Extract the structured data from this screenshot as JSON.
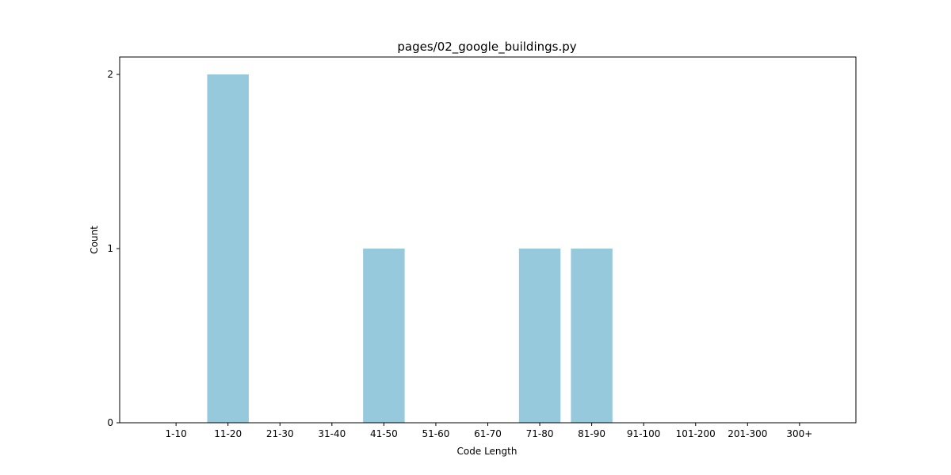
{
  "chart_data": {
    "type": "bar",
    "title": "pages/02_google_buildings.py",
    "xlabel": "Code Length",
    "ylabel": "Count",
    "categories": [
      "1-10",
      "11-20",
      "21-30",
      "31-40",
      "41-50",
      "51-60",
      "61-70",
      "71-80",
      "81-90",
      "91-100",
      "101-200",
      "201-300",
      "300+"
    ],
    "values": [
      0,
      2,
      0,
      0,
      1,
      0,
      0,
      1,
      1,
      0,
      0,
      0,
      0
    ],
    "yticks": [
      "0",
      "1",
      "2"
    ],
    "ylim": [
      0,
      2.1
    ],
    "bar_color": "#96c9dc",
    "grid": false,
    "legend": "none"
  }
}
